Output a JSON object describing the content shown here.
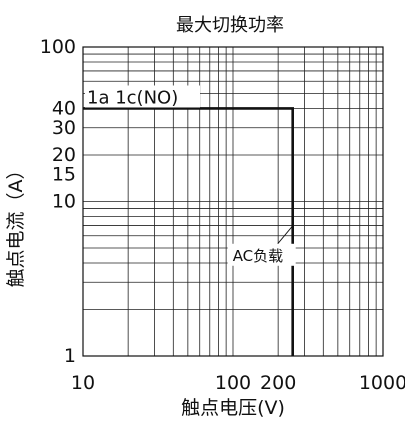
{
  "chart_data": {
    "type": "line",
    "title": "最大切换功率",
    "xlabel": "触点电压(V)",
    "ylabel": "触点电流（A）",
    "xscale": "log",
    "yscale": "log",
    "xlim": [
      10,
      1000
    ],
    "ylim": [
      1,
      100
    ],
    "grid": true,
    "x_ticks": [
      {
        "value": 10,
        "label": "10"
      },
      {
        "value": 100,
        "label": "100"
      },
      {
        "value": 200,
        "label": "200"
      },
      {
        "value": 1000,
        "label": "1000"
      }
    ],
    "y_ticks": [
      {
        "value": 1,
        "label": "1"
      },
      {
        "value": 10,
        "label": "10"
      },
      {
        "value": 15,
        "label": "15"
      },
      {
        "value": 20,
        "label": "20"
      },
      {
        "value": 30,
        "label": "30"
      },
      {
        "value": 40,
        "label": "40"
      },
      {
        "value": 100,
        "label": "100"
      }
    ],
    "series": [
      {
        "points": [
          {
            "x": 10,
            "y": 40
          },
          {
            "x": 250,
            "y": 40
          },
          {
            "x": 250,
            "y": 1
          }
        ]
      }
    ],
    "annotations": [
      {
        "text": "1a  1c(NO)",
        "x": 10,
        "y": 40
      },
      {
        "text": "AC负载",
        "x": 250,
        "y": 6
      }
    ]
  }
}
